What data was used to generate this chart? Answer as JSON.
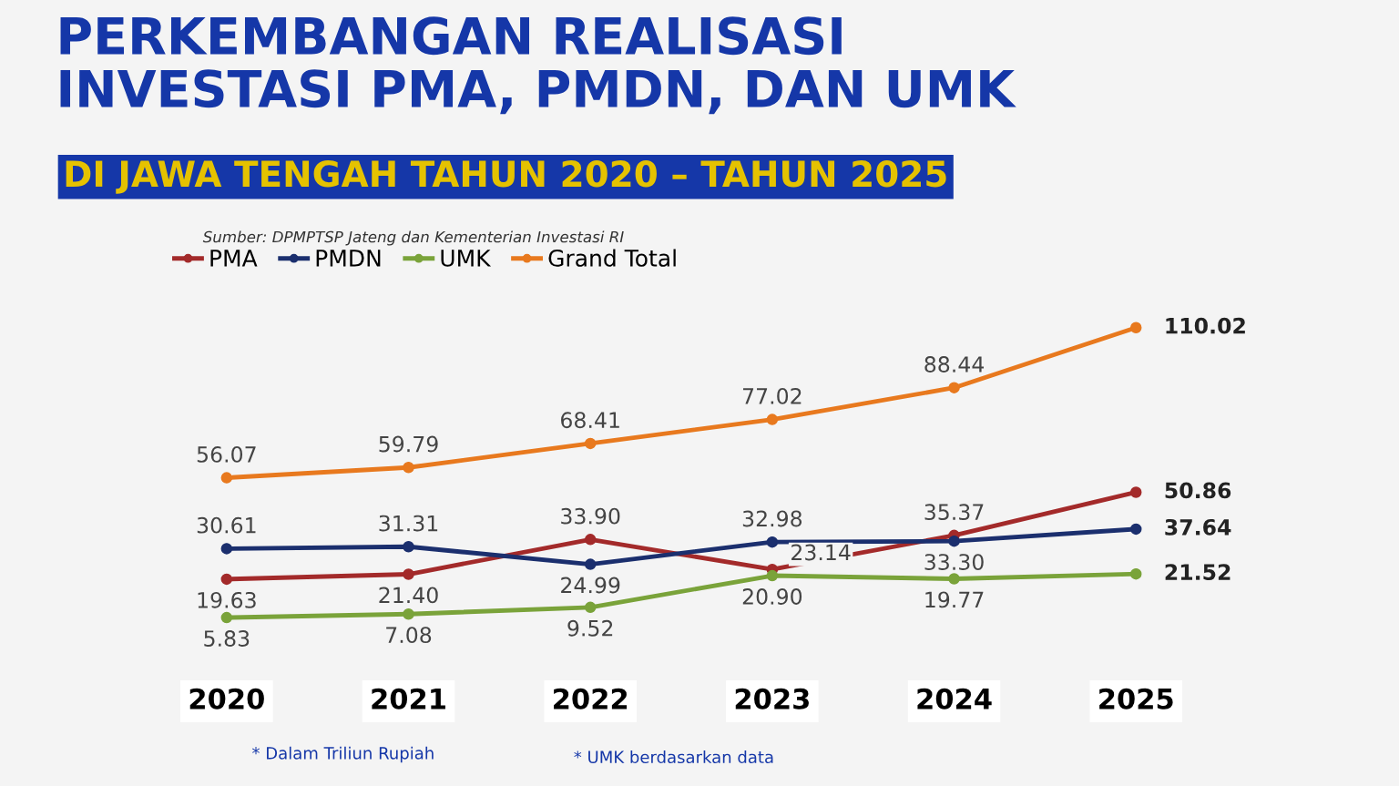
{
  "chart_data": {
    "type": "line",
    "title": "PERKEMBANGAN REALISASI\nINVESTASI PMA, PMDN, DAN UMK",
    "subtitle": "DI JAWA TENGAH TAHUN 2020 – TAHUN 2025",
    "categories": [
      "2020",
      "2021",
      "2022",
      "2023",
      "2024",
      "2025"
    ],
    "series": [
      {
        "name": "PMA",
        "color": "#a32a2a",
        "values": [
          19.63,
          21.4,
          33.9,
          23.14,
          35.37,
          50.86
        ],
        "value_labels": [
          "19.63",
          "21.40",
          "33.90",
          "23.14",
          "35.37",
          "50.86"
        ]
      },
      {
        "name": "PMDN",
        "color": "#1b2f6e",
        "values": [
          30.61,
          31.31,
          24.99,
          32.98,
          33.3,
          37.64
        ],
        "value_labels": [
          "30.61",
          "31.31",
          "24.99",
          "32.98",
          "33.30",
          "37.64"
        ]
      },
      {
        "name": "UMK",
        "color": "#7aa33a",
        "values": [
          5.83,
          7.08,
          9.52,
          20.9,
          19.77,
          21.52
        ],
        "value_labels": [
          "5.83",
          "7.08",
          "9.52",
          "20.90",
          "19.77",
          "21.52"
        ]
      },
      {
        "name": "Grand Total",
        "color": "#e8791e",
        "values": [
          56.07,
          59.79,
          68.41,
          77.02,
          88.44,
          110.02
        ],
        "value_labels": [
          "56.07",
          "59.79",
          "68.41",
          "77.02",
          "88.44",
          "110.02"
        ]
      }
    ],
    "marker": "circle",
    "line_style": "solid",
    "grid": false,
    "legend": "top left",
    "annotations": [
      "Sumber: DPMPTSP Jateng dan Kementerian Investasi RI",
      "* Dalam Triliun Rupiah",
      "* UMK berdasarkan data"
    ]
  }
}
